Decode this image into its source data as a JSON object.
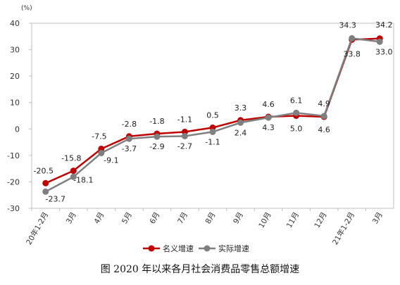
{
  "chart_data": {
    "type": "line",
    "title": "",
    "xlabel": "",
    "ylabel": "(%)",
    "ylim": [
      -30,
      40
    ],
    "yticks": [
      40,
      30,
      20,
      10,
      0,
      -10,
      -20,
      -30
    ],
    "categories": [
      "20年1-2月",
      "3月",
      "4月",
      "5月",
      "6月",
      "7月",
      "8月",
      "9月",
      "10月",
      "11月",
      "12月",
      "21年1-2月",
      "3月"
    ],
    "series": [
      {
        "name": "名义增速",
        "color": "#c00000",
        "values": [
          -20.5,
          -15.8,
          -7.5,
          -2.8,
          -1.8,
          -1.1,
          0.5,
          3.3,
          4.6,
          5.0,
          4.6,
          33.8,
          34.2
        ],
        "labels": [
          "-20.5",
          "-15.8",
          "-7.5",
          "-2.8",
          "-1.8",
          "-1.1",
          "0.5",
          "3.3",
          "4.6",
          "5.0",
          "4.6",
          "33.8",
          "34.2"
        ]
      },
      {
        "name": "实际增速",
        "color": "#7f7f7f",
        "values": [
          -23.7,
          -18.1,
          -9.1,
          -3.7,
          -2.9,
          -2.7,
          -1.1,
          2.4,
          4.3,
          6.1,
          4.9,
          34.3,
          33.0
        ],
        "labels": [
          "-23.7",
          "-18.1",
          "-9.1",
          "-3.7",
          "-2.9",
          "-2.7",
          "-1.1",
          "2.4",
          "4.3",
          "6.1",
          "4.9",
          "34.3",
          "33.0"
        ]
      }
    ],
    "legend": "bottom",
    "grid": false,
    "caption": "图   2020 年以来各月社会消费品零售总额增速"
  }
}
